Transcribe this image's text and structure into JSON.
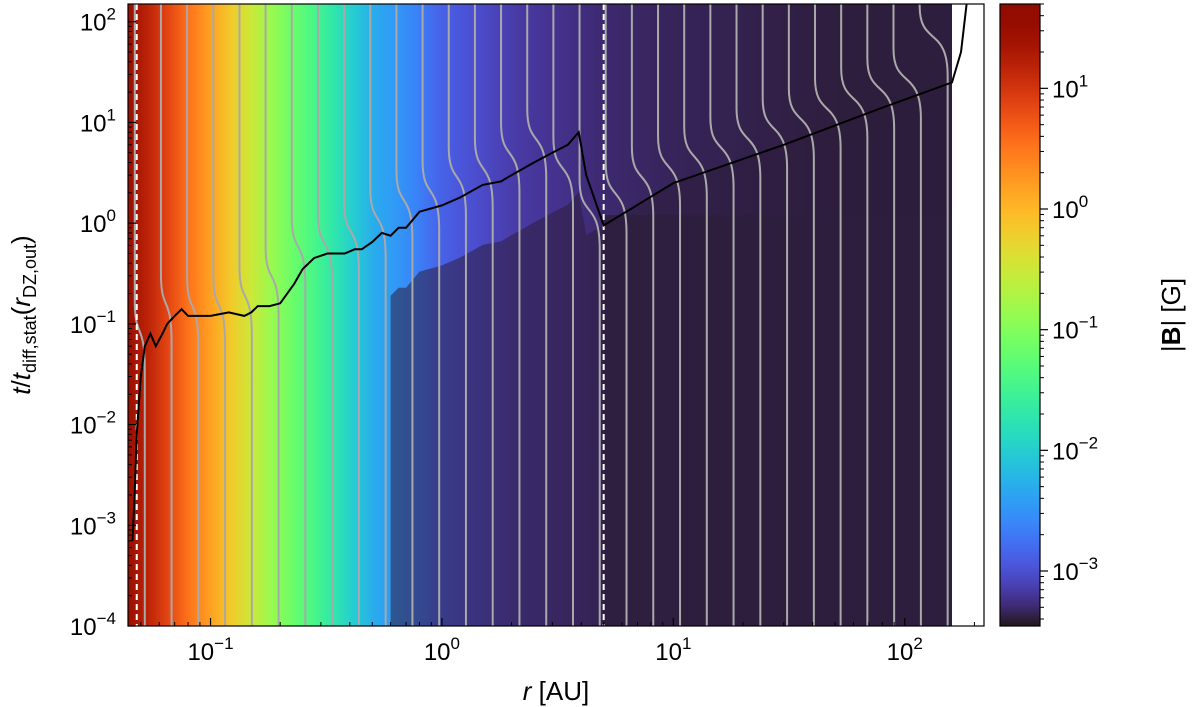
{
  "chart_data": {
    "type": "heatmap",
    "xlabel": "r [AU]",
    "ylabel": "t / t_diff,stat(r_DZ,out)",
    "xscale": "log",
    "yscale": "log",
    "xlim": [
      0.044,
      220
    ],
    "ylim": [
      0.0001,
      150
    ],
    "x_ticks": [
      {
        "value": 0.1,
        "base": "10",
        "exp": "−1"
      },
      {
        "value": 1,
        "base": "10",
        "exp": "0"
      },
      {
        "value": 10,
        "base": "10",
        "exp": "1"
      },
      {
        "value": 100,
        "base": "10",
        "exp": "2"
      }
    ],
    "y_ticks": [
      {
        "value": 0.0001,
        "base": "10",
        "exp": "−4"
      },
      {
        "value": 0.001,
        "base": "10",
        "exp": "−3"
      },
      {
        "value": 0.01,
        "base": "10",
        "exp": "−2"
      },
      {
        "value": 0.1,
        "base": "10",
        "exp": "−1"
      },
      {
        "value": 1,
        "base": "10",
        "exp": "0"
      },
      {
        "value": 10,
        "base": "10",
        "exp": "1"
      },
      {
        "value": 100,
        "base": "10",
        "exp": "2"
      }
    ],
    "colorbar": {
      "label": "|B| [G]",
      "scale": "log",
      "lim": [
        0.00035,
        50
      ],
      "colormap": "turbo",
      "ticks": [
        {
          "value": 0.001,
          "base": "10",
          "exp": "−3"
        },
        {
          "value": 0.01,
          "base": "10",
          "exp": "−2"
        },
        {
          "value": 0.1,
          "base": "10",
          "exp": "−1"
        },
        {
          "value": 1,
          "base": "10",
          "exp": "0"
        },
        {
          "value": 10,
          "base": "10",
          "exp": "1"
        }
      ]
    },
    "field_profile": {
      "r": [
        0.044,
        0.06,
        0.1,
        0.2,
        0.3,
        0.5,
        0.7,
        1,
        2,
        3,
        5,
        10,
        50,
        200
      ],
      "B": [
        30,
        10,
        1.5,
        0.1,
        0.03,
        0.005,
        0.003,
        0.0013,
        0.0007,
        0.0006,
        0.0005,
        0.00045,
        0.0004,
        0.0004
      ]
    },
    "dead_zone_boundaries": [
      0.048,
      5.0
    ],
    "front_curve": {
      "name": "",
      "color": "#000000",
      "r": [
        0.046,
        0.047,
        0.048,
        0.05,
        0.052,
        0.055,
        0.058,
        0.062,
        0.065,
        0.07,
        0.075,
        0.08,
        0.1,
        0.12,
        0.14,
        0.15,
        0.16,
        0.18,
        0.2,
        0.23,
        0.25,
        0.28,
        0.32,
        0.38,
        0.42,
        0.45,
        0.5,
        0.55,
        0.6,
        0.65,
        0.7,
        0.8,
        1.0,
        1.2,
        1.5,
        1.8,
        2.0,
        2.5,
        3.0,
        3.5,
        3.9,
        4.2,
        5.0,
        10,
        30,
        80,
        160,
        175,
        185
      ],
      "t": [
        0.0007,
        0.002,
        0.008,
        0.03,
        0.06,
        0.08,
        0.06,
        0.08,
        0.1,
        0.12,
        0.14,
        0.12,
        0.12,
        0.13,
        0.12,
        0.13,
        0.15,
        0.15,
        0.16,
        0.25,
        0.35,
        0.45,
        0.5,
        0.5,
        0.55,
        0.55,
        0.65,
        0.8,
        0.75,
        0.9,
        0.9,
        1.3,
        1.5,
        1.8,
        2.4,
        2.6,
        3,
        4,
        5,
        6,
        8,
        3,
        0.95,
        2.5,
        6,
        14,
        25,
        50,
        150
      ]
    }
  }
}
